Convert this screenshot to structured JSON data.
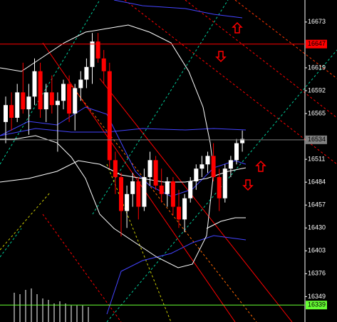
{
  "chart_data": {
    "type": "candlestick",
    "open": [
      16555,
      16575,
      16560,
      16590,
      16570,
      16585,
      16615,
      16570,
      16590,
      16575,
      16580,
      16600,
      16565,
      16595,
      16605,
      16620,
      16650,
      16630,
      16615,
      16510,
      16490,
      16450,
      16470,
      16485,
      16455,
      16490,
      16510,
      16480,
      16470,
      16485,
      16455,
      16440,
      16465,
      16485,
      16500,
      16505,
      16515,
      16490,
      16465,
      16500,
      16510,
      16530
    ],
    "high": [
      16585,
      16590,
      16600,
      16625,
      16600,
      16630,
      16625,
      16600,
      16610,
      16590,
      16605,
      16610,
      16600,
      16615,
      16630,
      16660,
      16660,
      16640,
      16625,
      16520,
      16495,
      16480,
      16495,
      16490,
      16500,
      16520,
      16515,
      16500,
      16490,
      16490,
      16475,
      16470,
      16490,
      16505,
      16515,
      16520,
      16530,
      16500,
      16505,
      16515,
      16535,
      16545
    ],
    "low": [
      16530,
      16545,
      16555,
      16565,
      16540,
      16575,
      16560,
      16555,
      16565,
      16520,
      16570,
      16555,
      16545,
      16580,
      16595,
      16600,
      16625,
      16600,
      16500,
      16470,
      16420,
      16430,
      16455,
      16440,
      16450,
      16480,
      16475,
      16460,
      16455,
      16445,
      16430,
      16425,
      16460,
      16475,
      16490,
      16495,
      16485,
      16450,
      16460,
      16490,
      16505,
      16520
    ],
    "close": [
      16575,
      16560,
      16590,
      16570,
      16585,
      16615,
      16570,
      16590,
      16575,
      16580,
      16600,
      16565,
      16595,
      16605,
      16620,
      16650,
      16630,
      16615,
      16510,
      16490,
      16450,
      16470,
      16485,
      16455,
      16490,
      16510,
      16480,
      16470,
      16485,
      16455,
      16440,
      16465,
      16485,
      16500,
      16505,
      16515,
      16490,
      16465,
      16500,
      16510,
      16530,
      16535
    ],
    "up_color": "#ffffff",
    "down_color": "#ff0000",
    "ylim": [
      16319,
      16699
    ],
    "yticks": [
      16673,
      16619,
      16592,
      16565,
      16511,
      16484,
      16457,
      16430,
      16403,
      16376,
      16349
    ],
    "levels": [
      {
        "value": 16647,
        "color": "#ff0000"
      },
      {
        "value": 16534,
        "color": "#808080"
      },
      {
        "value": 16339,
        "color": "#66ff33"
      }
    ]
  }
}
